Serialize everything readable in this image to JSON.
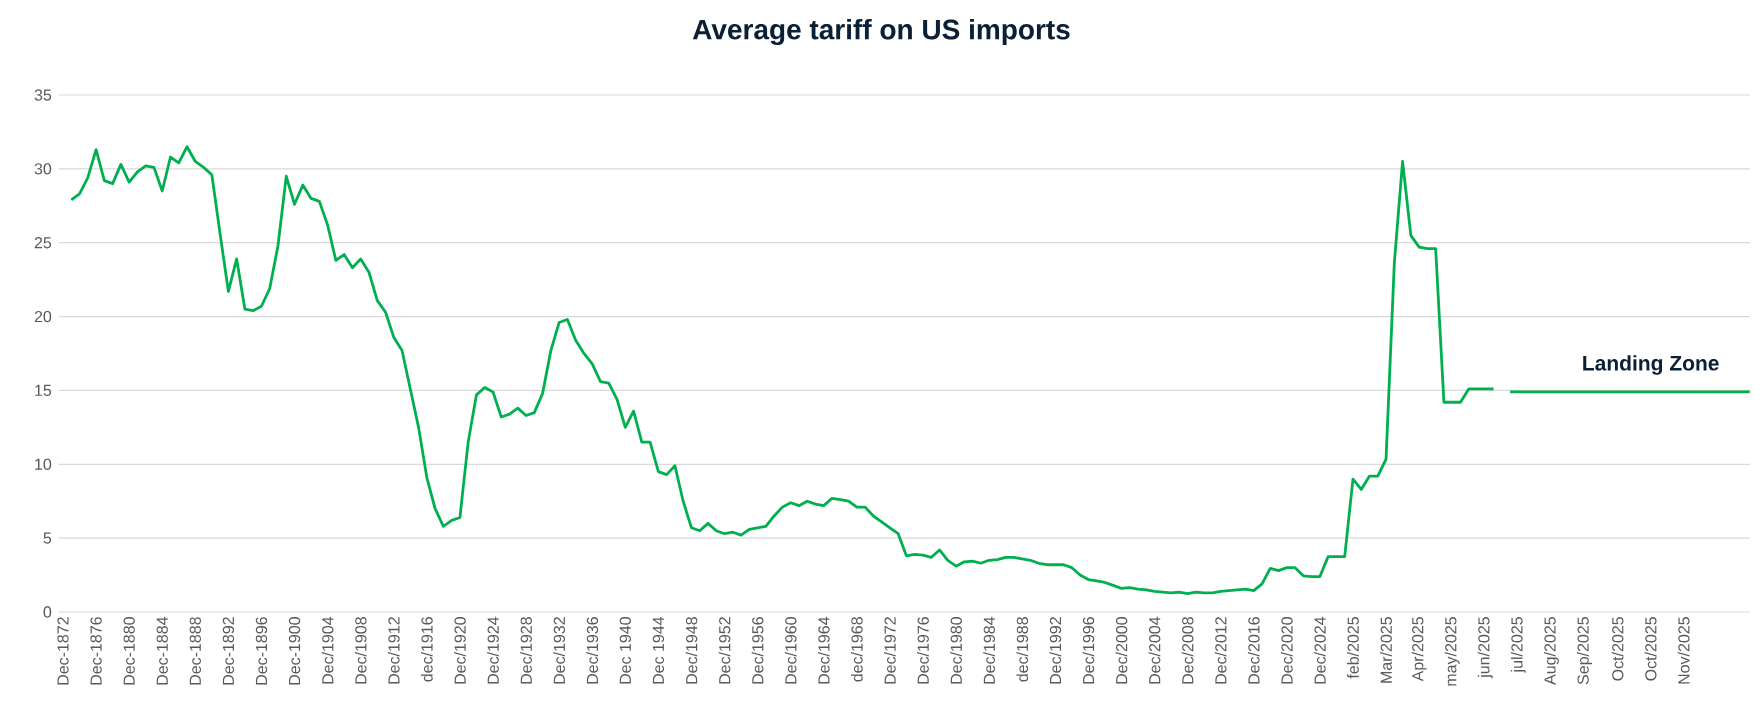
{
  "chart_data": {
    "type": "line",
    "title": "Average tariff on US imports",
    "categories": [
      "Dec-1872",
      null,
      null,
      null,
      "Dec-1876",
      null,
      null,
      null,
      "Dec-1880",
      null,
      null,
      null,
      "Dec-1884",
      null,
      null,
      null,
      "Dec-1888",
      null,
      null,
      null,
      "Dec-1892",
      null,
      null,
      null,
      "Dec-1896",
      null,
      null,
      null,
      "Dec-1900",
      null,
      null,
      null,
      "Dec/1904",
      null,
      null,
      null,
      "Dec/1908",
      null,
      null,
      null,
      "Dec/1912",
      null,
      null,
      null,
      "dec/1916",
      null,
      null,
      null,
      "Dec/1920",
      null,
      null,
      null,
      "Dec/1924",
      null,
      null,
      null,
      "Dec/1928",
      null,
      null,
      null,
      "Dec/1932",
      null,
      null,
      null,
      "Dec/1936",
      null,
      null,
      null,
      "Dec 1940",
      null,
      null,
      null,
      "Dec 1944",
      null,
      null,
      null,
      "Dec/1948",
      null,
      null,
      null,
      "Dec/1952",
      null,
      null,
      null,
      "Dec/1956",
      null,
      null,
      null,
      "Dec/1960",
      null,
      null,
      null,
      "Dec/1964",
      null,
      null,
      null,
      "dec/1968",
      null,
      null,
      null,
      "Dec/1972",
      null,
      null,
      null,
      "Dec/1976",
      null,
      null,
      null,
      "Dec/1980",
      null,
      null,
      null,
      "Dec/1984",
      null,
      null,
      null,
      "dec/1988",
      null,
      null,
      null,
      "Dec/1992",
      null,
      null,
      null,
      "Dec/1996",
      null,
      null,
      null,
      "Dec/2000",
      null,
      null,
      null,
      "Dec/2004",
      null,
      null,
      null,
      "Dec/2008",
      null,
      null,
      null,
      "Dec/2012",
      null,
      null,
      null,
      "Dec/2016",
      null,
      null,
      null,
      "Dec/2020",
      null,
      null,
      null,
      "Dec/2024",
      null,
      null,
      null,
      "feb/2025",
      null,
      null,
      null,
      "Mar/2025",
      null,
      null,
      null,
      "Apr/2025",
      null,
      null,
      null,
      "may/2025",
      null,
      null,
      null,
      "jun/2025",
      null,
      null,
      null,
      "jul/2025",
      null,
      null,
      null,
      "Aug/2025",
      null,
      null,
      null,
      "Sep/2025",
      null,
      null,
      null,
      "Oct/2025",
      null,
      null,
      null,
      "Oct/2025",
      null,
      null,
      null,
      "Nov/2025",
      null,
      null,
      null,
      null,
      null,
      null,
      null,
      null
    ],
    "values": [
      null,
      27.9,
      28.3,
      29.4,
      31.3,
      29.2,
      29.0,
      30.3,
      29.1,
      29.8,
      30.2,
      30.1,
      28.5,
      30.8,
      30.4,
      31.5,
      30.5,
      30.1,
      29.6,
      25.6,
      21.7,
      23.9,
      20.5,
      20.4,
      20.7,
      21.9,
      24.8,
      29.5,
      27.6,
      28.9,
      28.0,
      27.8,
      26.2,
      23.8,
      24.2,
      23.3,
      23.9,
      23.0,
      21.1,
      20.3,
      18.6,
      17.7,
      15.1,
      12.5,
      9.1,
      7.0,
      5.8,
      6.2,
      6.4,
      11.5,
      14.7,
      15.2,
      14.9,
      13.2,
      13.4,
      13.8,
      13.3,
      13.5,
      14.8,
      17.7,
      19.6,
      19.8,
      18.4,
      17.5,
      16.8,
      15.6,
      15.5,
      14.4,
      12.5,
      13.6,
      11.5,
      11.5,
      9.5,
      9.3,
      9.9,
      7.5,
      5.7,
      5.5,
      6.0,
      5.5,
      5.3,
      5.4,
      5.2,
      5.6,
      5.7,
      5.8,
      6.5,
      7.1,
      7.4,
      7.2,
      7.5,
      7.3,
      7.2,
      7.7,
      7.6,
      7.5,
      7.1,
      7.1,
      6.5,
      6.1,
      5.7,
      5.3,
      3.8,
      3.9,
      3.85,
      3.7,
      4.2,
      3.5,
      3.1,
      3.4,
      3.45,
      3.3,
      3.5,
      3.55,
      3.7,
      3.7,
      3.6,
      3.5,
      3.3,
      3.2,
      3.2,
      3.2,
      3.0,
      2.5,
      2.2,
      2.1,
      2.0,
      1.8,
      1.6,
      1.65,
      1.55,
      1.5,
      1.4,
      1.35,
      1.3,
      1.35,
      1.25,
      1.35,
      1.3,
      1.3,
      1.4,
      1.45,
      1.5,
      1.55,
      1.45,
      1.9,
      2.95,
      2.8,
      3.0,
      3.0,
      2.45,
      2.4,
      2.4,
      3.75,
      3.75,
      3.75,
      9.0,
      8.3,
      9.2,
      9.2,
      10.35,
      23.6,
      30.5,
      25.5,
      24.7,
      24.6,
      24.6,
      14.2,
      14.2,
      14.2,
      15.1,
      15.1,
      15.1,
      15.1,
      null,
      14.9,
      14.9,
      14.9,
      14.9,
      14.9,
      14.9,
      14.9,
      14.9,
      14.9,
      14.9,
      14.9,
      14.9,
      14.9,
      14.9,
      14.9,
      14.9,
      14.9,
      14.9,
      14.9,
      14.9,
      14.9,
      14.9,
      14.9,
      14.9,
      14.9,
      14.9,
      14.9,
      14.9,
      14.9,
      14.9
    ],
    "color": "#00b050",
    "ylim": [
      0,
      35
    ],
    "yticks": [
      0,
      5,
      10,
      15,
      20,
      25,
      30,
      35
    ],
    "grid": "y",
    "annotations": [
      "Landing Zone"
    ]
  }
}
